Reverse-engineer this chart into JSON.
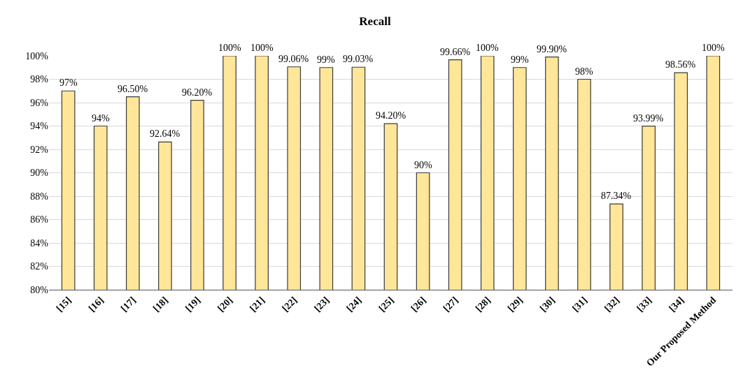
{
  "chart_data": {
    "type": "bar",
    "title": "Recall",
    "categories": [
      "[15]",
      "[16]",
      "[17]",
      "[18]",
      "[19]",
      "[20]",
      "[21]",
      "[22]",
      "[23]",
      "[24]",
      "[25]",
      "[26]",
      "[27]",
      "[28]",
      "[29]",
      "[30]",
      "[31]",
      "[32]",
      "[33]",
      "[34]",
      "Our Proposed Method"
    ],
    "values": [
      97,
      94,
      96.5,
      92.64,
      96.2,
      100,
      100,
      99.06,
      99,
      99.03,
      94.2,
      90,
      99.66,
      100,
      99,
      99.9,
      98,
      87.34,
      93.99,
      98.56,
      100
    ],
    "value_labels": [
      "97%",
      "94%",
      "96.50%",
      "92.64%",
      "96.20%",
      "100%",
      "100%",
      "99.06%",
      "99%",
      "99.03%",
      "94.20%",
      "90%",
      "99.66%",
      "100%",
      "99%",
      "99.90%",
      "98%",
      "87.34%",
      "93.99%",
      "98.56%",
      "100%"
    ],
    "color": "#ffe699",
    "ylim": [
      80,
      100
    ],
    "yticks": [
      {
        "value": 80,
        "label": "80%"
      },
      {
        "value": 82,
        "label": "82%"
      },
      {
        "value": 84,
        "label": "84%"
      },
      {
        "value": 86,
        "label": "86%"
      },
      {
        "value": 88,
        "label": "88%"
      },
      {
        "value": 90,
        "label": "90%"
      },
      {
        "value": 92,
        "label": "92%"
      },
      {
        "value": 94,
        "label": "94%"
      },
      {
        "value": 96,
        "label": "96%"
      },
      {
        "value": 98,
        "label": "98%"
      },
      {
        "value": 100,
        "label": "100%"
      }
    ],
    "grid": "y"
  }
}
